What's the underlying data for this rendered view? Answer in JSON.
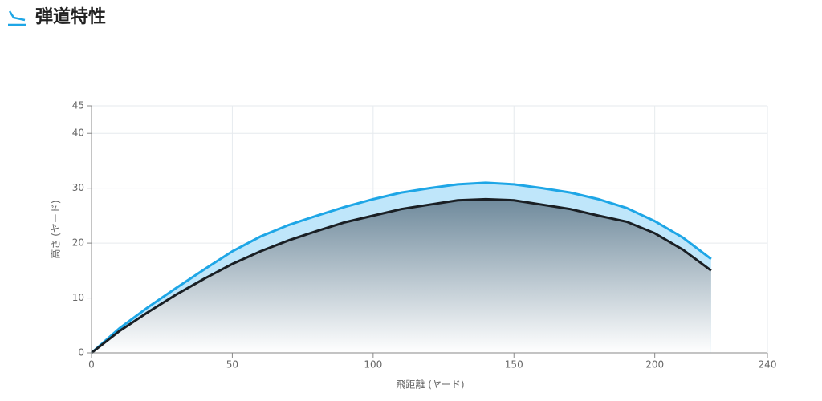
{
  "chart_data": {
    "type": "area",
    "title": "弾道特性",
    "x_label": "飛距離 (ヤード)",
    "y_label": "高さ (ヤード)",
    "x": [
      0,
      10,
      20,
      30,
      40,
      50,
      60,
      70,
      80,
      90,
      100,
      110,
      120,
      130,
      140,
      150,
      160,
      170,
      180,
      190,
      200,
      210,
      220
    ],
    "series": [
      {
        "color": "#1ea6e6",
        "fill": "#bfe6fa",
        "values": [
          0,
          4.5,
          8.3,
          11.8,
          15.2,
          18.5,
          21.2,
          23.3,
          25,
          26.6,
          28,
          29.2,
          30,
          30.7,
          31,
          30.7,
          30,
          29.2,
          28,
          26.4,
          24,
          21,
          17.1
        ]
      },
      {
        "color": "#1a1f24",
        "fill": "#7f98a8",
        "values": [
          0,
          4,
          7.4,
          10.6,
          13.5,
          16.2,
          18.5,
          20.5,
          22.2,
          23.8,
          25,
          26.2,
          27,
          27.8,
          28,
          27.8,
          27,
          26.2,
          25,
          23.9,
          21.8,
          18.8,
          15
        ]
      }
    ],
    "xlim": [
      0,
      240
    ],
    "xticks": [
      0,
      50,
      100,
      150,
      200,
      240
    ],
    "ylim": [
      0,
      45
    ],
    "yticks": [
      0,
      10,
      20,
      30,
      40,
      45
    ],
    "grid": true
  }
}
